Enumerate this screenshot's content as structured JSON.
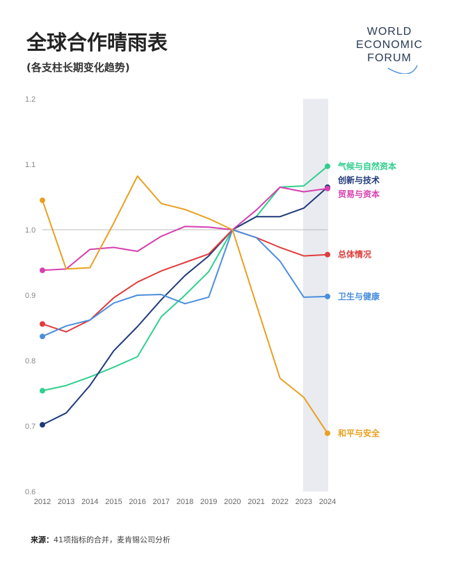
{
  "header": {
    "title": "全球合作晴雨表",
    "subtitle": "(各支柱长期变化趋势)"
  },
  "logo": {
    "lines": [
      "WORLD",
      "ECONOMIC",
      "FORUM"
    ]
  },
  "footer": {
    "source_label": "来源：",
    "source_text": "41项指标的合并，麦肯锡公司分析"
  },
  "chart_data": {
    "type": "line",
    "x": [
      2012,
      2013,
      2014,
      2015,
      2016,
      2017,
      2018,
      2019,
      2020,
      2021,
      2022,
      2023,
      2024
    ],
    "ylim": [
      0.6,
      1.2
    ],
    "yticks": [
      "0.6",
      "0.7",
      "0.8",
      "0.9",
      "1.0",
      "1.1",
      "1.2"
    ],
    "reference_line": 1.0,
    "highlight_range": [
      2023,
      2024
    ],
    "grid": false,
    "legend": "end-of-line labels",
    "series": [
      {
        "name": "气候与自然资本",
        "color": "#2fcf8e",
        "values": [
          0.754,
          0.762,
          0.775,
          0.79,
          0.806,
          0.867,
          0.9,
          0.936,
          1.0,
          1.02,
          1.065,
          1.067,
          1.097
        ]
      },
      {
        "name": "创新与技术",
        "color": "#1f3a7a",
        "values": [
          0.702,
          0.72,
          0.762,
          0.815,
          0.852,
          0.893,
          0.93,
          0.96,
          1.0,
          1.02,
          1.02,
          1.033,
          1.065
        ]
      },
      {
        "name": "贸易与资本",
        "color": "#d63fb0",
        "values": [
          0.938,
          0.94,
          0.97,
          0.973,
          0.967,
          0.99,
          1.005,
          1.004,
          1.0,
          1.03,
          1.065,
          1.058,
          1.063
        ]
      },
      {
        "name": "总体情况",
        "color": "#e03c3c",
        "values": [
          0.856,
          0.844,
          0.862,
          0.896,
          0.92,
          0.937,
          0.95,
          0.963,
          1.0,
          0.988,
          0.973,
          0.96,
          0.962
        ]
      },
      {
        "name": "卫生与健康",
        "color": "#4a8fdc",
        "values": [
          0.837,
          0.853,
          0.862,
          0.888,
          0.9,
          0.901,
          0.887,
          0.897,
          1.0,
          0.988,
          0.952,
          0.897,
          0.898
        ]
      },
      {
        "name": "和平与安全",
        "color": "#e8a020",
        "values": [
          1.045,
          0.94,
          0.942,
          1.01,
          1.082,
          1.04,
          1.031,
          1.017,
          1.0,
          0.886,
          0.773,
          0.744,
          0.689
        ]
      }
    ]
  }
}
